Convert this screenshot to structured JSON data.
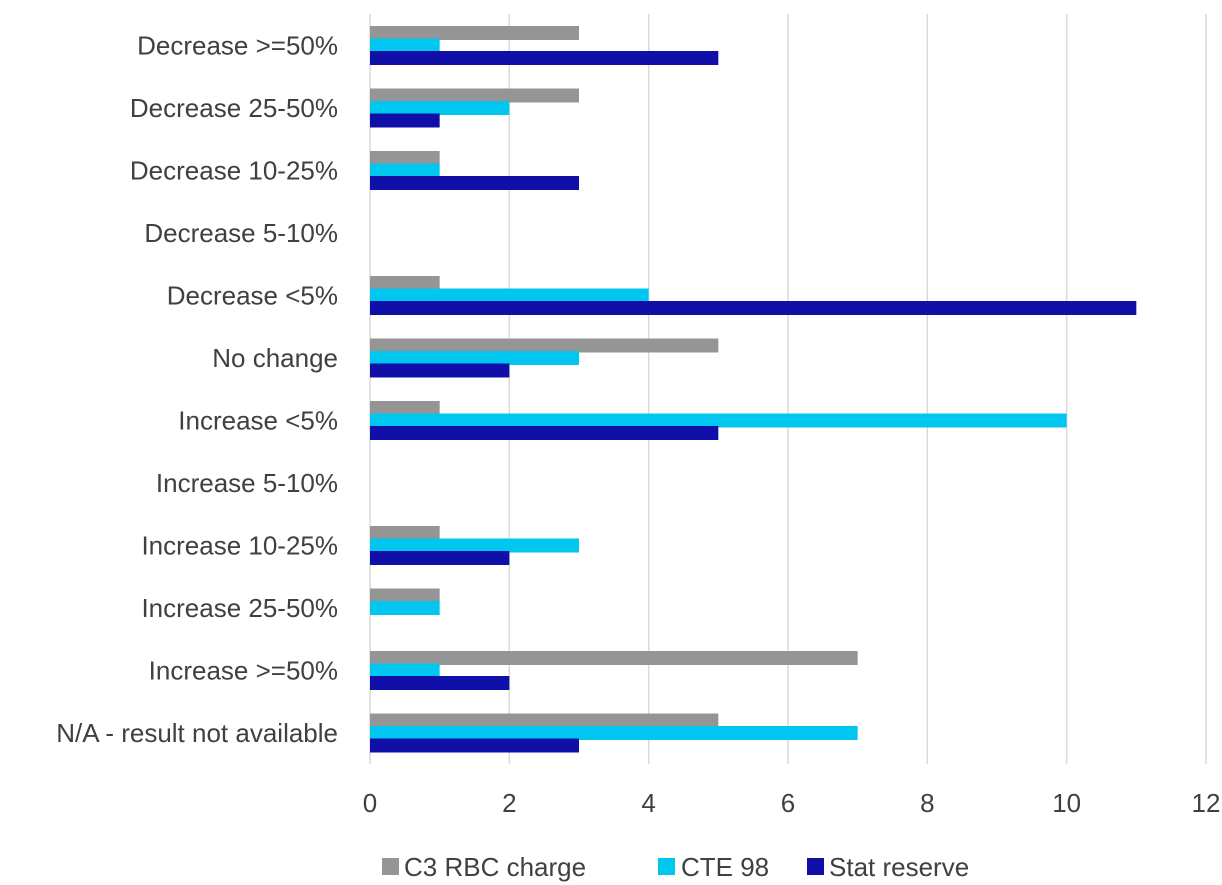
{
  "chart_data": {
    "type": "bar",
    "orientation": "horizontal",
    "categories": [
      "Decrease >=50%",
      "Decrease 25-50%",
      "Decrease 10-25%",
      "Decrease 5-10%",
      "Decrease <5%",
      "No change",
      "Increase <5%",
      "Increase 5-10%",
      "Increase 10-25%",
      "Increase 25-50%",
      "Increase >=50%",
      "N/A - result not available"
    ],
    "series": [
      {
        "name": "C3 RBC charge",
        "color": "#959595",
        "values": [
          3,
          3,
          1,
          0,
          1,
          5,
          1,
          0,
          1,
          1,
          7,
          5
        ]
      },
      {
        "name": "CTE 98",
        "color": "#00c6f0",
        "values": [
          1,
          2,
          1,
          0,
          4,
          3,
          10,
          0,
          3,
          1,
          1,
          7
        ]
      },
      {
        "name": "Stat reserve",
        "color": "#1010a8",
        "values": [
          5,
          1,
          3,
          0,
          11,
          2,
          5,
          0,
          2,
          0,
          2,
          3
        ]
      }
    ],
    "xlim": [
      0,
      12
    ],
    "xticks": [
      "0",
      "2",
      "4",
      "6",
      "8",
      "10",
      "12"
    ],
    "grid": "vertical",
    "legend_position": "bottom",
    "title": "",
    "xlabel": "",
    "ylabel": ""
  }
}
